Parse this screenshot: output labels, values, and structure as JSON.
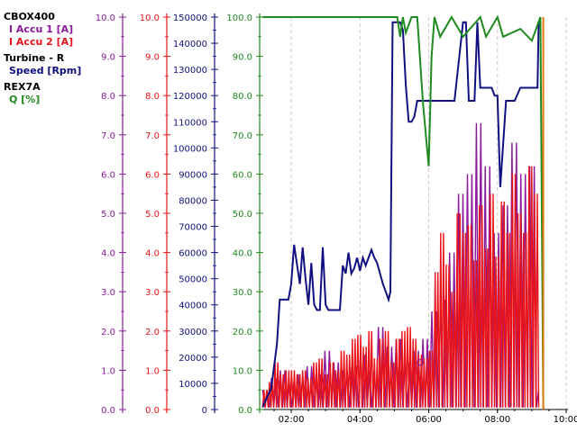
{
  "legend": [
    {
      "device": "CBOX400",
      "series": [
        "I Accu 1 [A]",
        "I Accu 2 [A]"
      ]
    },
    {
      "device": "Turbine - R",
      "series": [
        "Speed [Rpm]"
      ]
    },
    {
      "device": "REX7A",
      "series": [
        "Q [%]"
      ]
    }
  ],
  "colors": {
    "accu1": "#8a1a9a",
    "accu2": "#e8141a",
    "speed": "#101080",
    "q": "#1f8a1f",
    "grid": "#cccccc",
    "orange": "#e07a10"
  },
  "chart_data": {
    "type": "line",
    "x_unit": "hh:mm",
    "xlim": [
      "01:08",
      "10:00"
    ],
    "x_ticks": [
      "02:00",
      "04:00",
      "06:00",
      "08:00",
      "10:00"
    ],
    "grid": "vertical dashed lines at x ticks",
    "axes": [
      {
        "id": "accu1",
        "color": "#8a1a9a",
        "ylim": [
          0,
          10
        ],
        "ticks": [
          "0.0",
          "1.0",
          "2.0",
          "3.0",
          "4.0",
          "5.0",
          "6.0",
          "7.0",
          "8.0",
          "9.0",
          "10.0"
        ]
      },
      {
        "id": "accu2",
        "color": "#e8141a",
        "ylim": [
          0,
          10
        ],
        "ticks": [
          "0.0",
          "1.0",
          "2.0",
          "3.0",
          "4.0",
          "5.0",
          "6.0",
          "7.0",
          "8.0",
          "9.0",
          "10.0"
        ]
      },
      {
        "id": "speed",
        "color": "#101080",
        "ylim": [
          0,
          150000
        ],
        "ticks": [
          "0",
          "10000",
          "20000",
          "30000",
          "40000",
          "50000",
          "60000",
          "70000",
          "80000",
          "90000",
          "100000",
          "110000",
          "120000",
          "130000",
          "140000",
          "150000"
        ]
      },
      {
        "id": "q",
        "color": "#1f8a1f",
        "ylim": [
          0,
          100
        ],
        "ticks": [
          "0.0",
          "10.0",
          "20.0",
          "30.0",
          "40.0",
          "50.0",
          "60.0",
          "70.0",
          "80.0",
          "90.0",
          "100.0"
        ]
      }
    ],
    "series": [
      {
        "name": "Speed [Rpm]",
        "axis": "speed",
        "x": [
          "01:10",
          "01:25",
          "01:35",
          "01:40",
          "01:55",
          "02:00",
          "02:05",
          "02:15",
          "02:20",
          "02:25",
          "02:30",
          "02:35",
          "02:40",
          "02:45",
          "02:50",
          "02:55",
          "03:00",
          "03:05",
          "03:15",
          "03:20",
          "03:25",
          "03:30",
          "03:35",
          "03:40",
          "03:45",
          "03:50",
          "03:55",
          "04:00",
          "04:05",
          "04:10",
          "04:15",
          "04:20",
          "04:25",
          "04:30",
          "04:35",
          "04:40",
          "04:45",
          "04:50",
          "04:53",
          "04:55",
          "04:57",
          "05:00",
          "05:10",
          "05:15",
          "05:20",
          "05:25",
          "05:30",
          "05:35",
          "05:40",
          "05:50",
          "06:00",
          "06:30",
          "06:45",
          "07:00",
          "07:05",
          "07:10",
          "07:15",
          "07:20",
          "07:25",
          "07:30",
          "07:40",
          "07:50",
          "07:55",
          "08:00",
          "08:05",
          "08:15",
          "08:20",
          "08:30",
          "08:40",
          "08:45",
          "08:50",
          "08:55",
          "09:00",
          "09:05",
          "09:10",
          "09:12"
        ],
        "values": [
          1000,
          8000,
          25000,
          42000,
          42000,
          48000,
          63000,
          48000,
          62000,
          50000,
          40000,
          56000,
          40000,
          38000,
          38000,
          62000,
          40000,
          38000,
          38000,
          38000,
          38000,
          55000,
          52000,
          60000,
          52000,
          54000,
          58000,
          53000,
          58000,
          55000,
          58000,
          61000,
          58000,
          56000,
          52000,
          48000,
          45000,
          42000,
          45000,
          95000,
          148000,
          148000,
          148000,
          145000,
          124000,
          110000,
          110000,
          112000,
          118000,
          118000,
          118000,
          118000,
          118000,
          148000,
          148000,
          118000,
          118000,
          118000,
          148000,
          123000,
          123000,
          123000,
          120000,
          120000,
          85000,
          118000,
          118000,
          118000,
          123000,
          123000,
          123000,
          123000,
          123000,
          123000,
          123000,
          148000
        ]
      },
      {
        "name": "Q [%]",
        "axis": "q",
        "x": [
          "01:10",
          "04:50",
          "05:05",
          "05:10",
          "05:15",
          "05:20",
          "05:30",
          "05:40",
          "05:50",
          "06:00",
          "06:05",
          "06:10",
          "06:20",
          "06:40",
          "07:00",
          "07:30",
          "07:40",
          "08:00",
          "08:10",
          "08:40",
          "09:00",
          "09:15",
          "09:20"
        ],
        "values": [
          100,
          100,
          100,
          95,
          100,
          96,
          100,
          100,
          78,
          62,
          90,
          100,
          95,
          100,
          95,
          100,
          95,
          100,
          95,
          97,
          94,
          100,
          0
        ]
      },
      {
        "name": "I Accu 1 [A]",
        "axis": "accu1",
        "density": "dense oscillation between 0 and peaks",
        "peaks": [
          0.5,
          0.8,
          1.0,
          0.7,
          0.9,
          1.1,
          0.9,
          1.5,
          1.2,
          1.0,
          1.1,
          1.4,
          1.0,
          2.1,
          1.6,
          1.8,
          1.2,
          1.5,
          1.8,
          2.5,
          2.8,
          4.0,
          5.5,
          6.0,
          7.3,
          6.2,
          4.5,
          5.2,
          6.8,
          6.0,
          6.2
        ]
      },
      {
        "name": "I Accu 2 [A]",
        "axis": "accu2",
        "density": "dense oscillation between 0 and peaks",
        "peaks": [
          0.5,
          0.7,
          1.2,
          0.9,
          1.0,
          1.0,
          0.9,
          1.0,
          0.8,
          1.2,
          1.3,
          0.9,
          1.2,
          1.0,
          1.5,
          1.4,
          1.8,
          1.9,
          1.6,
          2.0,
          1.3,
          1.8,
          2.0,
          1.2,
          1.8,
          2.0,
          2.1,
          1.8,
          1.4,
          1.3,
          1.5,
          3.5,
          4.5,
          3.7,
          3.0,
          5.0,
          4.5,
          4.7,
          3.8,
          5.2,
          4.1,
          5.5,
          3.9,
          5.3,
          4.5,
          6.0,
          5.0,
          4.5,
          6.2,
          5.5
        ]
      }
    ]
  }
}
